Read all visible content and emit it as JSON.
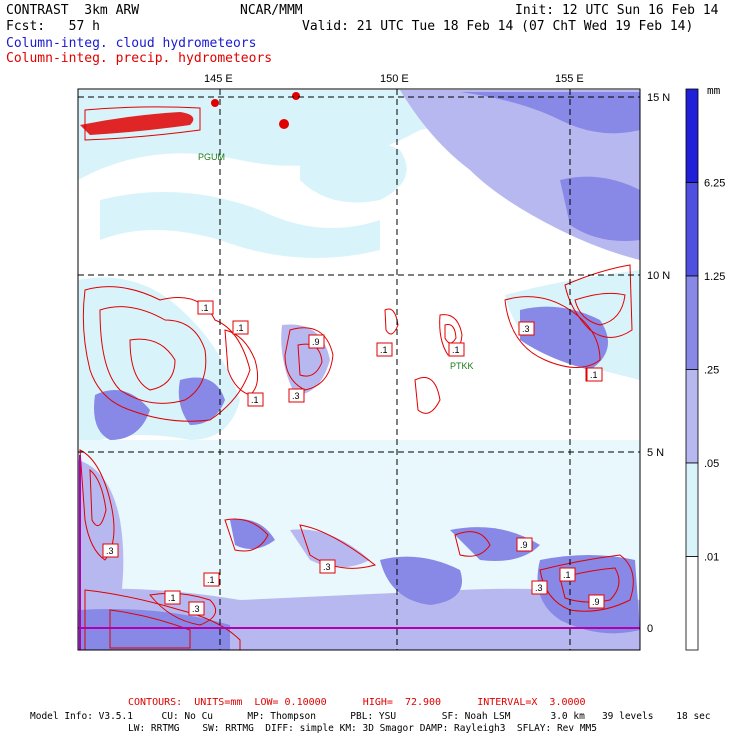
{
  "header": {
    "model": "CONTRAST  3km ARW",
    "agency": "NCAR/MMM",
    "init": "Init: 12 UTC Sun 16 Feb 14",
    "fcst": "Fcst:   57 h",
    "valid": "Valid: 21 UTC Tue 18 Feb 14 (07 ChT Wed 19 Feb 14)",
    "field_cloud": "Column-integ. cloud hydrometeors",
    "field_precip": "Column-integ. precip. hydrometeors"
  },
  "map": {
    "lon_labels": [
      "145 E",
      "150 E",
      "155 E"
    ],
    "lat_labels": [
      "15 N",
      "10 N",
      "5 N",
      "0"
    ],
    "places": [
      "PGUM",
      "PTKK"
    ],
    "contour_labels": [
      ".1",
      ".1",
      ".9",
      ".3",
      ".1",
      ".1",
      ".1",
      ".3",
      ".1",
      ".3",
      ".1",
      ".3",
      ".1",
      ".3",
      ".9",
      ".1",
      ".9",
      ".3",
      ".1",
      ".1"
    ]
  },
  "colorbar": {
    "unit": "mm",
    "levels": [
      "6.25",
      "1.25",
      ".25",
      ".05",
      ".01"
    ],
    "colors": [
      "#2020d8",
      "#5050e0",
      "#8888e6",
      "#b8b8f0",
      "#d8f4fa",
      "#ffffff"
    ]
  },
  "footer": {
    "contours": "CONTOURS:  UNITS=mm  LOW= 0.10000      HIGH=  72.900      INTERVAL=X  3.0000",
    "model_info": "Model Info: V3.5.1     CU: No Cu      MP: Thompson      PBL: YSU        SF: Noah LSM       3.0 km   39 levels    18 sec",
    "model_info2": "LW: RRTMG    SW: RRTMG  DIFF: simple KM: 3D Smagor DAMP: Rayleigh3  SFLAY: Rev MM5"
  },
  "colors": {
    "cloud_label": "#1a1ad0",
    "precip_label": "#e00000",
    "contour": "#e00000",
    "place": "#1a7a1a"
  }
}
